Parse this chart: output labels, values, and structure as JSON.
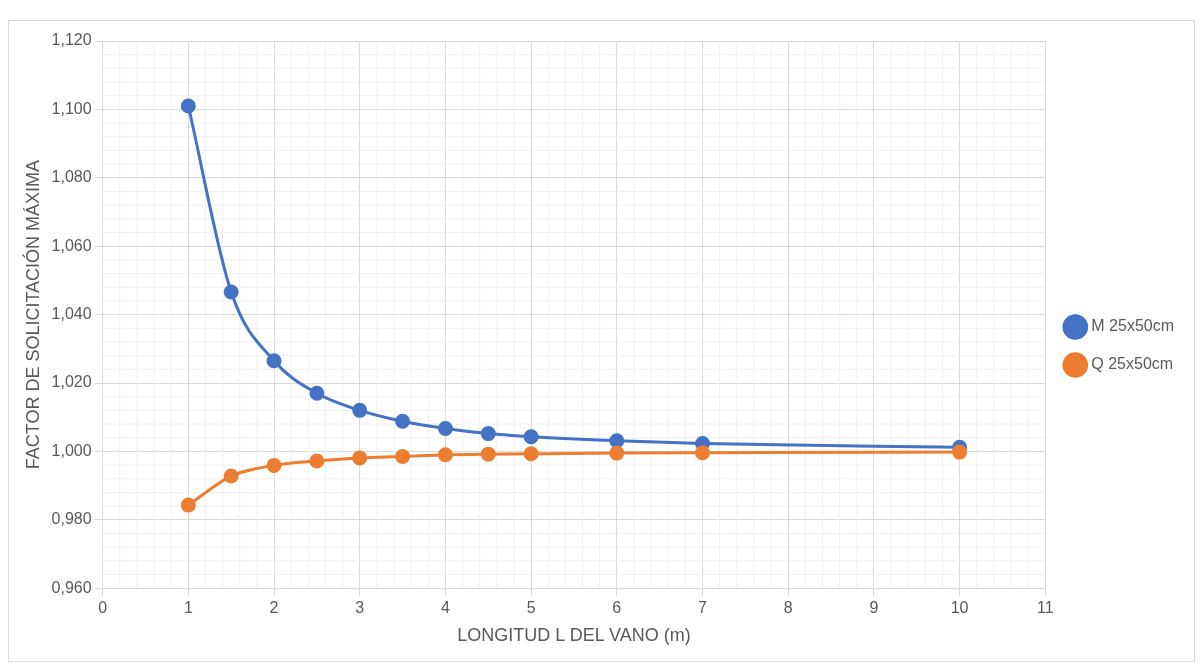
{
  "chart_data": {
    "type": "line",
    "xlabel": "LONGITUD L DEL VANO (m)",
    "ylabel": "FACTOR DE SOLICITACIÓN MÁXIMA",
    "x": [
      1,
      1.5,
      2,
      2.5,
      3,
      3.5,
      4,
      4.5,
      5,
      6,
      7,
      10
    ],
    "series": [
      {
        "name": "M 25x50cm",
        "color": "#4472c4",
        "values": [
          1.101,
          1.0466,
          1.0265,
          1.017,
          1.012,
          1.0088,
          1.0067,
          1.0052,
          1.0043,
          1.0031,
          1.0023,
          1.0012
        ]
      },
      {
        "name": "Q 25x50cm",
        "color": "#ed7d31",
        "values": [
          0.9843,
          0.9928,
          0.9959,
          0.9972,
          0.9981,
          0.9985,
          0.999,
          0.9992,
          0.9993,
          0.9995,
          0.9996,
          0.9998
        ]
      }
    ],
    "xlim": [
      0,
      11
    ],
    "xticks": [
      0,
      1,
      2,
      3,
      4,
      5,
      6,
      7,
      8,
      9,
      10,
      11
    ],
    "ylim": [
      0.96,
      1.12
    ],
    "yticks": [
      {
        "value": 0.96,
        "label": "0,960"
      },
      {
        "value": 0.98,
        "label": "0,980"
      },
      {
        "value": 1,
        "label": "1,000"
      },
      {
        "value": 1.02,
        "label": "1,020"
      },
      {
        "value": 1.04,
        "label": "1,040"
      },
      {
        "value": 1.06,
        "label": "1,060"
      },
      {
        "value": 1.08,
        "label": "1,080"
      },
      {
        "value": 1.1,
        "label": "1,100"
      },
      {
        "value": 1.12,
        "label": "1,120"
      }
    ],
    "grid": true,
    "legend": "right",
    "marker": "circle",
    "line_style": "solid"
  }
}
